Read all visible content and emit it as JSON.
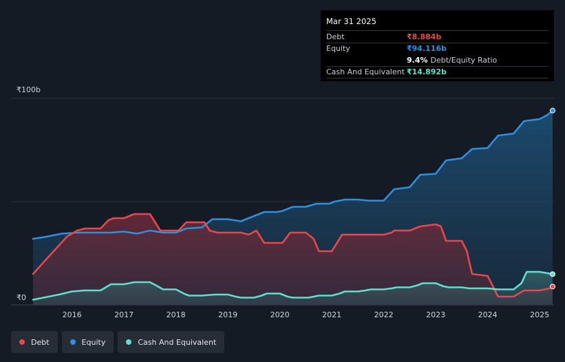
{
  "tooltip": {
    "date": "Mar 31 2025",
    "debt_label": "Debt",
    "debt_value": "₹8.884b",
    "equity_label": "Equity",
    "equity_value": "₹94.116b",
    "ratio_value": "9.4%",
    "ratio_label": "Debt/Equity Ratio",
    "cash_label": "Cash And Equivalent",
    "cash_value": "₹14.892b"
  },
  "legend": {
    "debt": "Debt",
    "equity": "Equity",
    "cash": "Cash And Equivalent"
  },
  "colors": {
    "debt": "#e5484d",
    "equity": "#2f8fe0",
    "cash": "#5fe0cf",
    "background": "#151b24"
  },
  "chart_data": {
    "type": "area",
    "y_unit": "₹b",
    "ylim": [
      0,
      100
    ],
    "y_ticks": [
      {
        "value": 100,
        "label": "₹100b"
      },
      {
        "value": 0,
        "label": "₹0"
      }
    ],
    "x_range": [
      2015.25,
      2025.25
    ],
    "x_ticks": [
      "2016",
      "2017",
      "2018",
      "2019",
      "2020",
      "2021",
      "2022",
      "2023",
      "2024",
      "2025"
    ],
    "gridlines": [
      0,
      50,
      100
    ],
    "series": [
      {
        "name": "Debt",
        "x": [
          2015.25,
          2015.9,
          2016.1,
          2016.25,
          2016.55,
          2016.7,
          2016.8,
          2017.0,
          2017.1,
          2017.2,
          2017.5,
          2017.7,
          2017.8,
          2018.05,
          2018.2,
          2018.3,
          2018.55,
          2018.65,
          2018.8,
          2019.25,
          2019.4,
          2019.55,
          2019.7,
          2019.95,
          2020.05,
          2020.2,
          2020.5,
          2020.65,
          2020.75,
          2021.0,
          2021.1,
          2021.2,
          2021.5,
          2021.7,
          2022.0,
          2022.15,
          2022.2,
          2022.5,
          2022.7,
          2023.0,
          2023.1,
          2023.2,
          2023.5,
          2023.6,
          2023.7,
          2024.0,
          2024.1,
          2024.2,
          2024.5,
          2024.7,
          2025.0,
          2025.2,
          2025.25
        ],
        "values": [
          15,
          33,
          36,
          37,
          37,
          41,
          42,
          42,
          43,
          44,
          44,
          36,
          36,
          36,
          40,
          40,
          40,
          36,
          35,
          35,
          34,
          36,
          30,
          30,
          30,
          35,
          35,
          32,
          26,
          26,
          30,
          34,
          34,
          34,
          34,
          35,
          36,
          36,
          38,
          39,
          38,
          31,
          31,
          26,
          15,
          14,
          9,
          4,
          4,
          7,
          7,
          8,
          8.884
        ]
      },
      {
        "name": "Equity",
        "x": [
          2015.25,
          2015.5,
          2015.8,
          2016.1,
          2016.5,
          2016.75,
          2017.0,
          2017.25,
          2017.5,
          2017.75,
          2018.0,
          2018.2,
          2018.5,
          2018.7,
          2019.0,
          2019.25,
          2019.5,
          2019.7,
          2019.95,
          2020.05,
          2020.25,
          2020.5,
          2020.7,
          2020.95,
          2021.05,
          2021.25,
          2021.5,
          2021.7,
          2022.0,
          2022.2,
          2022.5,
          2022.7,
          2023.0,
          2023.2,
          2023.5,
          2023.7,
          2024.0,
          2024.2,
          2024.5,
          2024.7,
          2025.0,
          2025.15,
          2025.25
        ],
        "values": [
          32,
          33,
          34.5,
          35,
          35,
          35,
          35.5,
          34.5,
          36,
          35,
          35,
          37,
          37.5,
          41.5,
          41.5,
          40.5,
          43,
          45,
          45,
          45.5,
          47.5,
          47.5,
          49,
          49,
          50,
          51,
          51,
          50.5,
          50.5,
          56,
          57,
          63,
          63.5,
          70,
          71,
          75.5,
          76,
          82,
          83,
          89,
          90,
          92,
          94.116
        ]
      },
      {
        "name": "Cash And Equivalent",
        "x": [
          2015.25,
          2015.75,
          2016.0,
          2016.25,
          2016.55,
          2016.65,
          2016.75,
          2017.0,
          2017.1,
          2017.2,
          2017.5,
          2017.65,
          2017.75,
          2018.0,
          2018.15,
          2018.25,
          2018.5,
          2018.75,
          2019.0,
          2019.15,
          2019.25,
          2019.5,
          2019.65,
          2019.75,
          2020.0,
          2020.15,
          2020.25,
          2020.55,
          2020.65,
          2020.75,
          2021.0,
          2021.15,
          2021.25,
          2021.5,
          2021.65,
          2021.75,
          2022.0,
          2022.15,
          2022.25,
          2022.5,
          2022.65,
          2022.75,
          2023.0,
          2023.15,
          2023.25,
          2023.5,
          2023.65,
          2023.75,
          2024.0,
          2024.2,
          2024.5,
          2024.65,
          2024.75,
          2025.0,
          2025.25
        ],
        "values": [
          2.5,
          5,
          6.5,
          7,
          7,
          8.5,
          10,
          10,
          10.5,
          11,
          11,
          9,
          7.5,
          7.5,
          5.5,
          4.5,
          4.5,
          5,
          5,
          4,
          3.5,
          3.5,
          4.5,
          5.5,
          5.5,
          4,
          3.5,
          3.5,
          4,
          4.5,
          4.5,
          5.5,
          6.5,
          6.5,
          7,
          7.5,
          7.5,
          8,
          8.5,
          8.5,
          9.5,
          10.5,
          10.5,
          9,
          8.5,
          8.5,
          8,
          8,
          8,
          7.5,
          7.5,
          10.5,
          16,
          16,
          14.892
        ]
      }
    ]
  }
}
